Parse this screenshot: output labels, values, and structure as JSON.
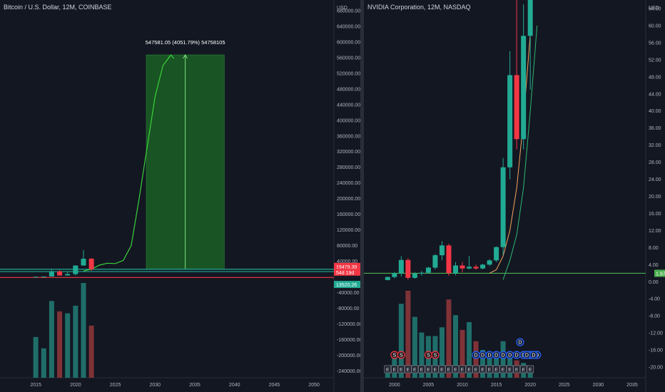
{
  "left_pane": {
    "title": "Bitcoin / U.S. Dollar, 12M, COINBASE",
    "currency": "USD",
    "measure_label": "547581.05 (4051.79%) 54758105",
    "price_tags": [
      {
        "value": "19479.39",
        "color": "#f23645"
      },
      {
        "value": "54d 19d",
        "color": "#f23645"
      },
      {
        "value": "13520.26",
        "color": "#22ab94"
      }
    ]
  },
  "right_pane": {
    "title": "NVIDIA Corporation, 12M, NASDAQ",
    "currency": "USD",
    "last_price": "1.97",
    "event_markers": [
      "S",
      "S",
      "S",
      "S",
      "D",
      "D",
      "D",
      "D",
      "D",
      "D",
      "D",
      "D",
      "D",
      "D",
      "D",
      "D",
      "D"
    ],
    "earnings_markers": [
      "E",
      "E",
      "E",
      "E",
      "E",
      "E",
      "E",
      "E",
      "E",
      "E",
      "E",
      "E",
      "E",
      "E",
      "E",
      "E",
      "E",
      "E",
      "E",
      "E",
      "E",
      "E"
    ]
  },
  "chart_data": [
    {
      "type": "line",
      "title": "Bitcoin / U.S. Dollar, 12M, COINBASE",
      "ylabel": "USD",
      "x_ticks": [
        "2015",
        "2020",
        "2025",
        "2030",
        "2035",
        "2040",
        "2045",
        "2050"
      ],
      "y_ticks": [
        "680000.00",
        "640000.00",
        "600000.00",
        "560000.00",
        "520000.00",
        "480000.00",
        "440000.00",
        "400000.00",
        "360000.00",
        "320000.00",
        "280000.00",
        "240000.00",
        "200000.00",
        "160000.00",
        "120000.00",
        "80000.00",
        "40000.00",
        "-40000.00",
        "-80000.00",
        "-120000.00",
        "-160000.00",
        "-200000.00",
        "-240000.00"
      ],
      "ylim": [
        -254000,
        700000
      ],
      "xlim": [
        2010.5,
        2052.5
      ],
      "grid": false,
      "candles": [
        {
          "x": 2015,
          "open": 300,
          "high": 500,
          "low": 170,
          "close": 430
        },
        {
          "x": 2016,
          "open": 430,
          "high": 1000,
          "low": 350,
          "close": 960
        },
        {
          "x": 2017,
          "open": 960,
          "high": 19800,
          "low": 750,
          "close": 13900
        },
        {
          "x": 2018,
          "open": 13900,
          "high": 17200,
          "low": 3100,
          "close": 3700
        },
        {
          "x": 2019,
          "open": 3700,
          "high": 13900,
          "low": 3400,
          "close": 7200
        },
        {
          "x": 2020,
          "open": 7200,
          "high": 29300,
          "low": 3800,
          "close": 29000
        },
        {
          "x": 2021,
          "open": 29000,
          "high": 69000,
          "low": 28800,
          "close": 46300
        },
        {
          "x": 2022,
          "open": 46300,
          "high": 48200,
          "low": 15500,
          "close": 19479
        }
      ],
      "projection": {
        "x": [
          2021,
          2022,
          2023,
          2024,
          2025,
          2026,
          2027,
          2028,
          2029,
          2030,
          2031,
          2032
        ],
        "y": [
          15000,
          19479,
          30000,
          35000,
          34000,
          42000,
          80000,
          200000,
          330000,
          460000,
          540000,
          567000
        ]
      },
      "measure": {
        "x0": 2028.9,
        "x1": 2038.7,
        "y0": 19479,
        "y1": 567060
      },
      "horizontal_lines": [
        {
          "y": 19479,
          "color": "#22ab94"
        },
        {
          "y": 13520,
          "color": "#22ab94"
        },
        {
          "y": -1500,
          "color": "#f23645"
        }
      ],
      "volume": [
        {
          "x": 2015,
          "value": 0.43,
          "color": "#1f6e6a"
        },
        {
          "x": 2016,
          "value": 0.31,
          "color": "#1f6e6a"
        },
        {
          "x": 2017,
          "value": 0.81,
          "color": "#1f6e6a"
        },
        {
          "x": 2018,
          "value": 0.7,
          "color": "#7f3337"
        },
        {
          "x": 2019,
          "value": 0.68,
          "color": "#1f6e6a"
        },
        {
          "x": 2020,
          "value": 0.76,
          "color": "#1f6e6a"
        },
        {
          "x": 2021,
          "value": 1.0,
          "color": "#1f6e6a"
        },
        {
          "x": 2022,
          "value": 0.55,
          "color": "#7f3337"
        }
      ]
    },
    {
      "type": "line",
      "title": "NVIDIA Corporation, 12M, NASDAQ",
      "ylabel": "USD",
      "x_ticks": [
        "2000",
        "2005",
        "2010",
        "2015",
        "2020",
        "2025",
        "2030",
        "2035"
      ],
      "y_ticks": [
        "64.00",
        "60.00",
        "56.00",
        "52.00",
        "48.00",
        "44.00",
        "40.00",
        "36.00",
        "32.00",
        "28.00",
        "24.00",
        "20.00",
        "16.00",
        "12.00",
        "8.00",
        "4.00",
        "0.00",
        "-4.00",
        "-8.00",
        "-12.00",
        "-16.00",
        "-20.00"
      ],
      "ylim": [
        -22,
        66
      ],
      "xlim": [
        1995.5,
        2037
      ],
      "grid": false,
      "candles": [
        {
          "x": 1999,
          "open": 0.4,
          "high": 1.2,
          "low": 0.3,
          "close": 1.1
        },
        {
          "x": 2000,
          "open": 1.1,
          "high": 2.3,
          "low": 0.8,
          "close": 2.0
        },
        {
          "x": 2001,
          "open": 2.0,
          "high": 6.0,
          "low": 1.2,
          "close": 5.1
        },
        {
          "x": 2002,
          "open": 5.1,
          "high": 5.5,
          "low": 0.5,
          "close": 0.9
        },
        {
          "x": 2003,
          "open": 0.9,
          "high": 2.2,
          "low": 0.7,
          "close": 1.9
        },
        {
          "x": 2004,
          "open": 1.9,
          "high": 2.5,
          "low": 1.4,
          "close": 2.1
        },
        {
          "x": 2005,
          "open": 2.1,
          "high": 3.5,
          "low": 1.9,
          "close": 3.3
        },
        {
          "x": 2006,
          "open": 3.3,
          "high": 6.5,
          "low": 2.9,
          "close": 6.2
        },
        {
          "x": 2007,
          "open": 6.2,
          "high": 9.5,
          "low": 5.0,
          "close": 8.5
        },
        {
          "x": 2008,
          "open": 8.5,
          "high": 8.9,
          "low": 1.4,
          "close": 2.0
        },
        {
          "x": 2009,
          "open": 2.0,
          "high": 4.6,
          "low": 1.5,
          "close": 3.8
        },
        {
          "x": 2010,
          "open": 3.8,
          "high": 4.6,
          "low": 2.2,
          "close": 3.1
        },
        {
          "x": 2011,
          "open": 3.1,
          "high": 6.0,
          "low": 2.9,
          "close": 3.5
        },
        {
          "x": 2012,
          "open": 3.5,
          "high": 4.0,
          "low": 2.8,
          "close": 3.1
        },
        {
          "x": 2013,
          "open": 3.1,
          "high": 4.2,
          "low": 2.9,
          "close": 4.0
        },
        {
          "x": 2014,
          "open": 4.0,
          "high": 5.3,
          "low": 3.7,
          "close": 5.0
        },
        {
          "x": 2015,
          "open": 5.0,
          "high": 8.3,
          "low": 4.6,
          "close": 8.1
        },
        {
          "x": 2016,
          "open": 8.1,
          "high": 29.0,
          "low": 6.2,
          "close": 26.8
        },
        {
          "x": 2017,
          "open": 26.8,
          "high": 54.0,
          "low": 24.0,
          "close": 48.4
        },
        {
          "x": 2018,
          "open": 48.4,
          "high": 73.0,
          "low": 31.0,
          "close": 33.4
        },
        {
          "x": 2019,
          "open": 33.4,
          "high": 65.0,
          "low": 31.0,
          "close": 57.6
        },
        {
          "x": 2020,
          "open": 57.6,
          "high": 70.0,
          "low": 45.0,
          "close": 68.0
        }
      ],
      "moving_averages": [
        {
          "name": "",
          "color": "#f7a35c",
          "x": [
            2014,
            2015,
            2016,
            2017,
            2018,
            2019,
            2020
          ],
          "y": [
            2.0,
            2.8,
            6.0,
            12.0,
            22.0,
            38.0,
            58.0
          ]
        },
        {
          "name": "",
          "color": "#2eb872",
          "x": [
            2016,
            2017,
            2018,
            2019,
            2020,
            2021
          ],
          "y": [
            0.5,
            5.0,
            11.0,
            22.0,
            40.0,
            60.0
          ]
        }
      ],
      "horizontal_lines": [
        {
          "y": 1.97,
          "color": "#4caf50"
        }
      ],
      "volume": [
        {
          "x": 1999,
          "value": 0.1,
          "color": "#1f6e6a"
        },
        {
          "x": 2000,
          "value": 0.25,
          "color": "#1f6e6a"
        },
        {
          "x": 2001,
          "value": 0.85,
          "color": "#1f6e6a"
        },
        {
          "x": 2002,
          "value": 1.0,
          "color": "#7f3337"
        },
        {
          "x": 2003,
          "value": 0.7,
          "color": "#1f6e6a"
        },
        {
          "x": 2004,
          "value": 0.52,
          "color": "#1f6e6a"
        },
        {
          "x": 2005,
          "value": 0.48,
          "color": "#1f6e6a"
        },
        {
          "x": 2006,
          "value": 0.48,
          "color": "#1f6e6a"
        },
        {
          "x": 2007,
          "value": 0.58,
          "color": "#1f6e6a"
        },
        {
          "x": 2008,
          "value": 0.9,
          "color": "#7f3337"
        },
        {
          "x": 2009,
          "value": 0.72,
          "color": "#1f6e6a"
        },
        {
          "x": 2010,
          "value": 0.55,
          "color": "#7f3337"
        },
        {
          "x": 2011,
          "value": 0.64,
          "color": "#1f6e6a"
        },
        {
          "x": 2012,
          "value": 0.42,
          "color": "#7f3337"
        },
        {
          "x": 2013,
          "value": 0.32,
          "color": "#1f6e6a"
        },
        {
          "x": 2014,
          "value": 0.24,
          "color": "#1f6e6a"
        },
        {
          "x": 2015,
          "value": 0.28,
          "color": "#1f6e6a"
        },
        {
          "x": 2016,
          "value": 0.42,
          "color": "#1f6e6a"
        },
        {
          "x": 2017,
          "value": 0.3,
          "color": "#1f6e6a"
        },
        {
          "x": 2018,
          "value": 0.2,
          "color": "#7f3337"
        },
        {
          "x": 2019,
          "value": 0.17,
          "color": "#1f6e6a"
        },
        {
          "x": 2020,
          "value": 0.1,
          "color": "#1f6e6a"
        }
      ]
    }
  ]
}
